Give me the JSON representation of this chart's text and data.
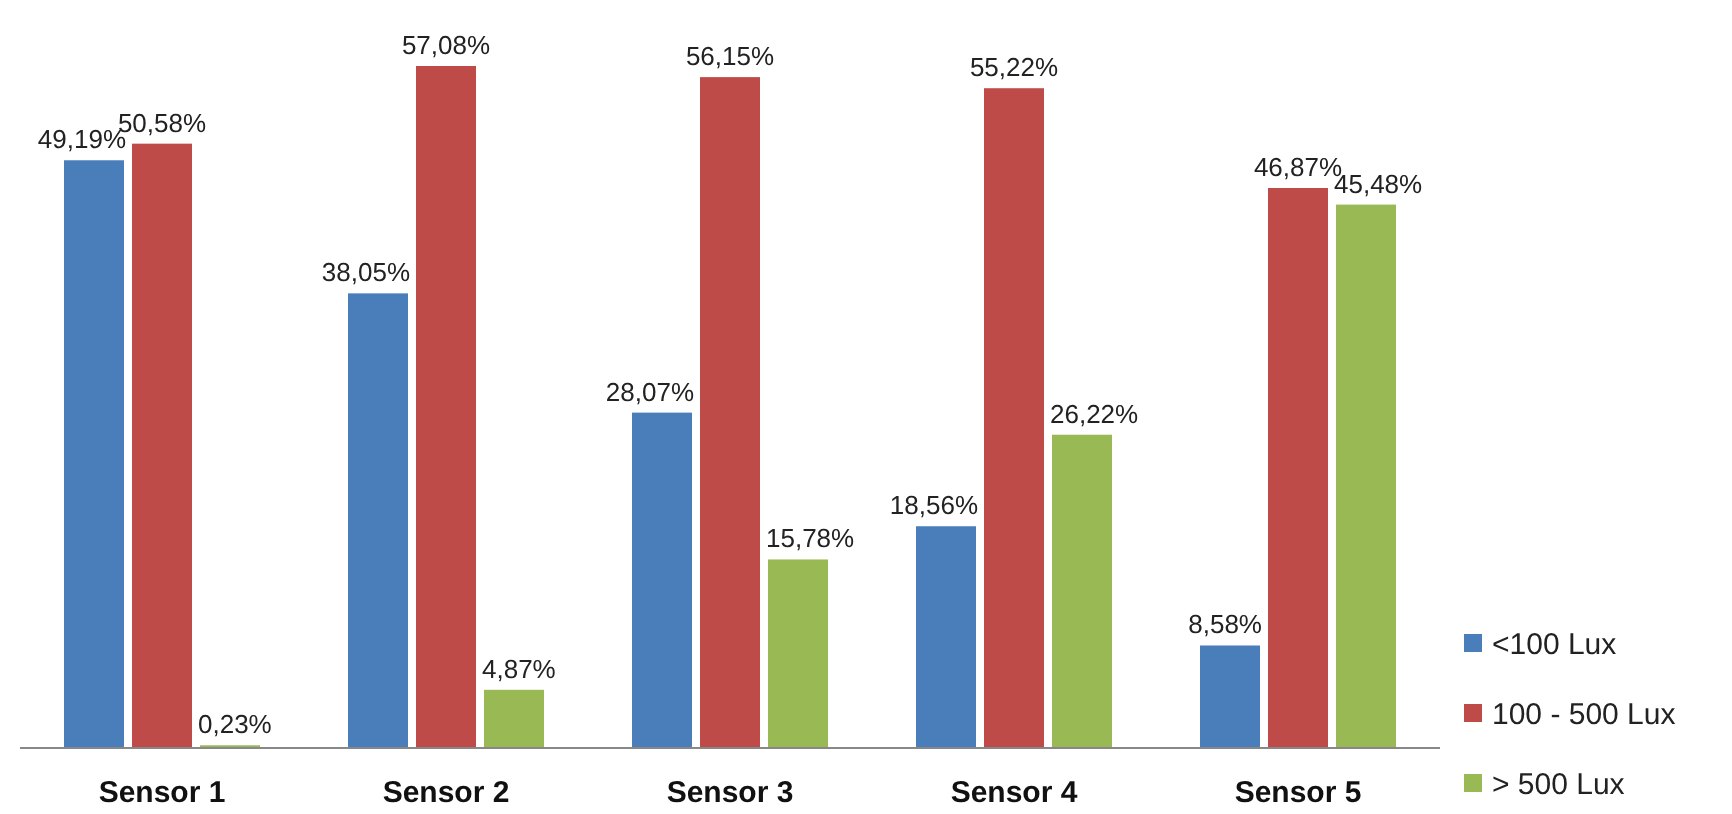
{
  "chart_data": {
    "type": "bar",
    "categories": [
      "Sensor 1",
      "Sensor 2",
      "Sensor 3",
      "Sensor 4",
      "Sensor 5"
    ],
    "legend": "bottom right",
    "series": [
      {
        "name": "<100 Lux",
        "color": "#4a7ebb",
        "values": [
          49.19,
          38.05,
          28.07,
          18.56,
          8.58
        ],
        "value_labels": [
          "49,19%",
          "38,05%",
          "28,07%",
          "18,56%",
          "8,58%"
        ]
      },
      {
        "name": "100 - 500 Lux",
        "color": "#be4b48",
        "values": [
          50.58,
          57.08,
          56.15,
          55.22,
          46.87
        ],
        "value_labels": [
          "50,58%",
          "57,08%",
          "56,15%",
          "55,22%",
          "46,87%"
        ]
      },
      {
        "name": "> 500 Lux",
        "color": "#98b954",
        "values": [
          0.23,
          4.87,
          15.78,
          26.22,
          45.48
        ],
        "value_labels": [
          "0,23%",
          "4,87%",
          "15,78%",
          "26,22%",
          "45,48%"
        ]
      }
    ]
  }
}
